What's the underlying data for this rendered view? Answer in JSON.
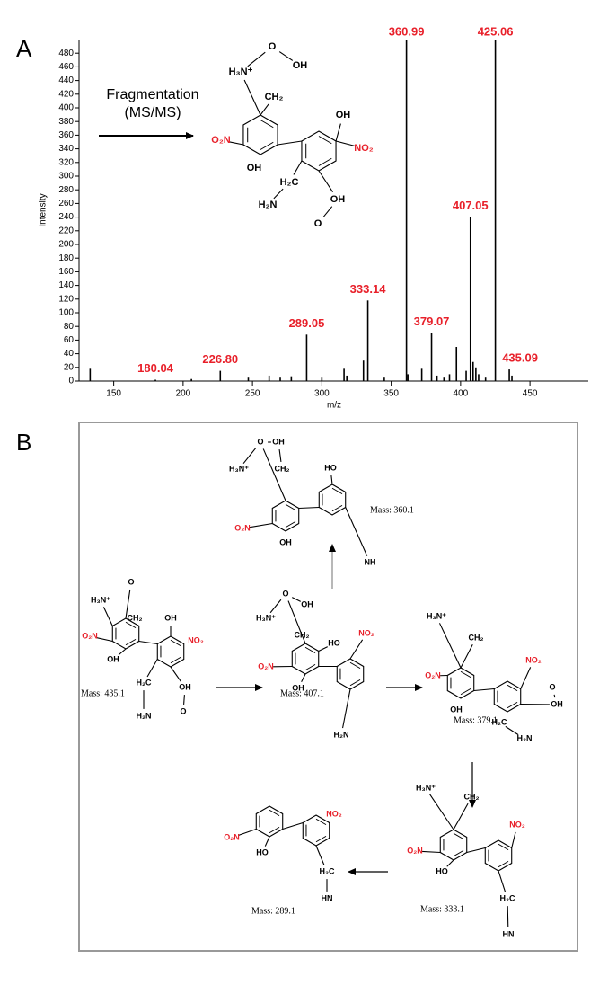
{
  "panel_labels": [
    "A",
    "B"
  ],
  "chart_data": {
    "type": "stem",
    "x_title": "m/z",
    "y_title": "Intensity",
    "annotation": [
      "Fragmentation",
      "(MS/MS)"
    ],
    "x": [
      133,
      180.04,
      206,
      226.8,
      247,
      262,
      270,
      278,
      289.05,
      300,
      316,
      318,
      330,
      333.14,
      345,
      360.99,
      362,
      372,
      379.07,
      383,
      388,
      392,
      397,
      404,
      407.05,
      409,
      411,
      413,
      418,
      425.06,
      435.09,
      437
    ],
    "values": [
      18,
      2,
      3,
      15,
      5,
      8,
      5,
      7,
      68,
      5,
      18,
      8,
      30,
      118,
      5,
      500,
      10,
      18,
      70,
      8,
      5,
      10,
      50,
      15,
      240,
      28,
      20,
      10,
      5,
      500,
      17,
      8
    ],
    "x_labels": [
      null,
      "180.04",
      null,
      "226.80",
      null,
      null,
      null,
      null,
      "289.05",
      null,
      null,
      null,
      null,
      "333.14",
      null,
      "360.99",
      null,
      null,
      "379.07",
      null,
      null,
      null,
      null,
      null,
      "407.05",
      null,
      null,
      null,
      null,
      "425.06",
      "435.09",
      null
    ],
    "color": "#000000",
    "label_color": "#e8202a",
    "xlim": [
      125,
      492
    ],
    "xticks": [
      150,
      200,
      250,
      300,
      350,
      400,
      450
    ],
    "ylim": [
      0,
      500
    ],
    "yticks": [
      0,
      20,
      40,
      60,
      80,
      100,
      120,
      140,
      160,
      180,
      200,
      220,
      240,
      260,
      280,
      300,
      320,
      340,
      360,
      380,
      400,
      420,
      440,
      460,
      480
    ]
  },
  "inset_structure": {
    "labels": [
      "H₃N⁺",
      "O",
      "OH",
      "CH₂",
      "O₂N",
      "OH",
      "OH",
      "NO₂",
      "H₂C",
      "H₂N",
      "OH",
      "O"
    ]
  },
  "scheme": {
    "molecules": [
      {
        "labels": [
          "O",
          "H₃N⁺",
          "CH₂",
          "O₂N",
          "OH",
          "OH",
          "NO₂",
          "H₂C",
          "H₂N",
          "OH",
          "O"
        ],
        "mass": "Mass: 435.1"
      },
      {
        "labels": [
          "O",
          "OH",
          "H₃N⁺",
          "CH₂",
          "O₂N",
          "OH",
          "HO",
          "NO₂",
          "H₂N"
        ],
        "mass": "Mass: 407.1"
      },
      {
        "labels": [
          "O",
          "OH",
          "H₃N⁺",
          "CH₂",
          "HO",
          "O₂N",
          "OH",
          "NH"
        ],
        "mass": "Mass: 360.1"
      },
      {
        "labels": [
          "H₃N⁺",
          "CH₂",
          "O₂N",
          "OH",
          "NO₂",
          "H₂C",
          "OH",
          "O",
          "H₂N"
        ],
        "mass": "Mass: 379.1"
      },
      {
        "labels": [
          "H₃N⁺",
          "CH₂",
          "O₂N",
          "HO",
          "NO₂",
          "H₂C",
          "HN"
        ],
        "mass": "Mass: 333.1"
      },
      {
        "labels": [
          "O₂N",
          "HO",
          "NO₂",
          "H₂C",
          "HN"
        ],
        "mass": "Mass: 289.1"
      }
    ]
  }
}
